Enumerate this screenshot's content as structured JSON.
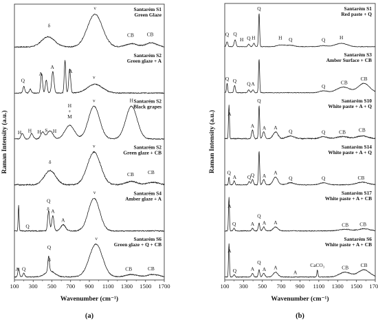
{
  "chart_data": [
    {
      "type": "line",
      "panel_label": "(a)",
      "xlabel": "Wavenumber (cm⁻¹)",
      "ylabel": "Raman Intensity (a.u.)",
      "xlim": [
        100,
        1700
      ],
      "xticks": [
        100,
        300,
        500,
        700,
        900,
        1100,
        1300,
        1500,
        1700
      ],
      "series": [
        {
          "name": "Santarém S1",
          "sub": "Green Glaze",
          "bl": 0.4,
          "sc": 1.0,
          "noise": 0.25,
          "peaks": [
            [
              460,
              70,
              2.5
            ],
            [
              960,
              80,
              8
            ],
            [
              1350,
              60,
              0.8
            ],
            [
              1560,
              60,
              1.0
            ]
          ],
          "annotations": [
            {
              "t": "δ",
              "x": 470,
              "dy": -14
            },
            {
              "t": "ν",
              "x": 960,
              "dy": -16
            },
            {
              "t": "CB",
              "x": 1340,
              "dy": -10
            },
            {
              "t": "CB",
              "x": 1550,
              "dy": -10
            }
          ]
        },
        {
          "name": "Santarém S2",
          "sub": "Green glaze + A",
          "bl": 0.6,
          "sc": 1.0,
          "noise": 0.4,
          "peaks": [
            [
              200,
              10,
              3
            ],
            [
              270,
              10,
              1.8
            ],
            [
              390,
              10,
              9
            ],
            [
              440,
              10,
              6
            ],
            [
              510,
              12,
              10
            ],
            [
              640,
              8,
              15
            ],
            [
              690,
              10,
              11
            ],
            [
              960,
              80,
              4
            ]
          ],
          "annotations": [
            {
              "t": "Q",
              "x": 190,
              "dy": -10
            },
            {
              "t": "A",
              "x": 380,
              "dy": -8
            },
            {
              "t": "A",
              "x": 505,
              "dy": -6
            },
            {
              "t": "A",
              "x": 700,
              "dy": -8
            },
            {
              "t": "ν",
              "x": 950,
              "dy": -8
            }
          ]
        },
        {
          "name": "Santarém S2",
          "sub": "Black grapes",
          "bl": 0.5,
          "sc": 1.0,
          "noise": 0.3,
          "peaks": [
            [
              185,
              15,
              2
            ],
            [
              285,
              15,
              2
            ],
            [
              400,
              20,
              2.5
            ],
            [
              480,
              30,
              3
            ],
            [
              690,
              50,
              5
            ],
            [
              950,
              60,
              12
            ],
            [
              1350,
              60,
              12
            ]
          ],
          "annotations": [
            {
              "t": "H",
              "x": 155,
              "dy": -6
            },
            {
              "t": "H",
              "x": 265,
              "dy": -6
            },
            {
              "t": "H",
              "x": 365,
              "dy": -6
            },
            {
              "t": "S",
              "x": 440,
              "dy": -4
            },
            {
              "t": "H",
              "x": 530,
              "dy": -6
            },
            {
              "t": "H",
              "x": 690,
              "dy": -26
            },
            {
              "t": "+",
              "x": 690,
              "dy": -18
            },
            {
              "t": "M",
              "x": 690,
              "dy": -10
            },
            {
              "t": "ν",
              "x": 950,
              "dy": -6
            },
            {
              "t": "H",
              "x": 1350,
              "dy": -6
            }
          ]
        },
        {
          "name": "Santarém S2",
          "sub": "Green glaze + CB",
          "bl": 0.5,
          "sc": 1.0,
          "noise": 0.3,
          "peaks": [
            [
              480,
              60,
              3.5
            ],
            [
              950,
              70,
              8
            ],
            [
              1350,
              60,
              0.8
            ],
            [
              1580,
              60,
              0.6
            ]
          ],
          "annotations": [
            {
              "t": "δ",
              "x": 480,
              "dy": -10
            },
            {
              "t": "ν",
              "x": 950,
              "dy": -10
            },
            {
              "t": "CB",
              "x": 1340,
              "dy": -8
            },
            {
              "t": "CB",
              "x": 1560,
              "dy": -12
            }
          ]
        },
        {
          "name": "Santarém S4",
          "sub": "Amber glaze + A",
          "bl": 0.5,
          "sc": 1.0,
          "noise": 0.4,
          "peaks": [
            [
              145,
              5,
              10
            ],
            [
              465,
              10,
              8
            ],
            [
              510,
              12,
              6
            ],
            [
              620,
              25,
              2.5
            ],
            [
              950,
              60,
              13
            ]
          ],
          "annotations": [
            {
              "t": "Q",
              "x": 240,
              "dy": -4
            },
            {
              "t": "Q",
              "x": 465,
              "dy": -12
            },
            {
              "t": "δ",
              "x": 460,
              "dy": -4
            },
            {
              "t": "A",
              "x": 510,
              "dy": -4
            },
            {
              "t": "A",
              "x": 620,
              "dy": -4
            },
            {
              "t": "ν",
              "x": 955,
              "dy": -6
            }
          ]
        },
        {
          "name": "Santarém S6",
          "sub": "Green glaze + Q + CB",
          "bl": 0.5,
          "sc": 1.0,
          "noise": 0.3,
          "peaks": [
            [
              145,
              8,
              3
            ],
            [
              200,
              10,
              1.2
            ],
            [
              465,
              8,
              5
            ],
            [
              480,
              50,
              2
            ],
            [
              970,
              70,
              11
            ],
            [
              1350,
              60,
              0.8
            ],
            [
              1580,
              60,
              0.8
            ]
          ],
          "annotations": [
            {
              "t": "A",
              "x": 130,
              "dy": -6
            },
            {
              "t": "Q",
              "x": 200,
              "dy": -4
            },
            {
              "t": "Q",
              "x": 470,
              "dy": -14
            },
            {
              "t": "δ",
              "x": 475,
              "dy": -4
            },
            {
              "t": "ν",
              "x": 975,
              "dy": -6
            },
            {
              "t": "CB",
              "x": 1320,
              "dy": -6
            },
            {
              "t": "CB",
              "x": 1560,
              "dy": -6
            }
          ]
        }
      ]
    },
    {
      "type": "line",
      "panel_label": "(b)",
      "xlabel": "Wavenumber (cm⁻¹)",
      "ylabel": "Raman Intensity (a.u.)",
      "xlim": [
        100,
        1700
      ],
      "xticks": [
        100,
        300,
        500,
        700,
        900,
        1100,
        1300,
        1500,
        1700
      ],
      "series": [
        {
          "name": "Santarém S1",
          "sub": "Red paste + Q",
          "bl": 0.3,
          "sc": 1.0,
          "noise": 0.3,
          "peaks": [
            [
              125,
              8,
              3
            ],
            [
              210,
              10,
              4
            ],
            [
              355,
              10,
              1.5
            ],
            [
              410,
              10,
              2
            ],
            [
              465,
              6,
              20
            ],
            [
              700,
              40,
              1
            ],
            [
              800,
              40,
              0.8
            ],
            [
              1150,
              40,
              0.6
            ],
            [
              1340,
              60,
              2
            ]
          ],
          "annotations": [
            {
              "t": "Q",
              "x": 125,
              "dy": -8
            },
            {
              "t": "Q",
              "x": 210,
              "dy": -6
            },
            {
              "t": "H",
              "x": 280,
              "dy": -8
            },
            {
              "t": "Q",
              "x": 355,
              "dy": -6
            },
            {
              "t": "H",
              "x": 405,
              "dy": -6
            },
            {
              "t": "Q",
              "x": 465,
              "dy": -4
            },
            {
              "t": "H",
              "x": 690,
              "dy": -8
            },
            {
              "t": "Q",
              "x": 800,
              "dy": -6
            },
            {
              "t": "Q",
              "x": 1150,
              "dy": -6
            },
            {
              "t": "H",
              "x": 1340,
              "dy": -6
            }
          ]
        },
        {
          "name": "Santarém S3",
          "sub": "Amber Surface + CB",
          "bl": 0.4,
          "sc": 1.0,
          "noise": 0.3,
          "peaks": [
            [
              125,
              6,
              5
            ],
            [
              205,
              8,
              4
            ],
            [
              355,
              10,
              1.5
            ],
            [
              400,
              10,
              1.5
            ],
            [
              465,
              6,
              18
            ],
            [
              1150,
              40,
              1
            ],
            [
              1360,
              70,
              3
            ],
            [
              1580,
              60,
              5
            ]
          ],
          "annotations": [
            {
              "t": "Q",
              "x": 125,
              "dy": -4
            },
            {
              "t": "Q",
              "x": 205,
              "dy": -4
            },
            {
              "t": "Q",
              "x": 355,
              "dy": -6
            },
            {
              "t": "A",
              "x": 400,
              "dy": -6
            },
            {
              "t": "Q",
              "x": 1150,
              "dy": -4
            },
            {
              "t": "CB",
              "x": 1370,
              "dy": -4
            },
            {
              "t": "CB",
              "x": 1580,
              "dy": -4
            }
          ]
        },
        {
          "name": "Santarém S10",
          "sub": "White paste + A + Q",
          "bl": 0.4,
          "sc": 1.0,
          "noise": 0.3,
          "peaks": [
            [
              145,
              5,
              10
            ],
            [
              395,
              10,
              2.5
            ],
            [
              465,
              6,
              10
            ],
            [
              515,
              12,
              2
            ],
            [
              640,
              25,
              2
            ],
            [
              800,
              40,
              0.8
            ],
            [
              1150,
              40,
              0.6
            ],
            [
              1350,
              60,
              0.6
            ],
            [
              1560,
              60,
              0.8
            ]
          ],
          "annotations": [
            {
              "t": "A",
              "x": 150,
              "dy": -4
            },
            {
              "t": "A",
              "x": 395,
              "dy": -4
            },
            {
              "t": "Q",
              "x": 465,
              "dy": -4
            },
            {
              "t": "A",
              "x": 520,
              "dy": -4
            },
            {
              "t": "A",
              "x": 640,
              "dy": -4
            },
            {
              "t": "Q",
              "x": 800,
              "dy": -4
            },
            {
              "t": "Q",
              "x": 1150,
              "dy": -4
            },
            {
              "t": "CB",
              "x": 1350,
              "dy": -4
            },
            {
              "t": "CB",
              "x": 1560,
              "dy": -6
            }
          ]
        },
        {
          "name": "Santarém S14",
          "sub": "White paste + A + Q",
          "bl": 0.4,
          "sc": 1.0,
          "noise": 0.3,
          "peaks": [
            [
              145,
              5,
              3
            ],
            [
              200,
              8,
              1.5
            ],
            [
              360,
              10,
              1.2
            ],
            [
              395,
              10,
              2
            ],
            [
              465,
              6,
              13
            ],
            [
              515,
              12,
              2
            ],
            [
              640,
              25,
              3
            ],
            [
              800,
              40,
              0.8
            ],
            [
              1150,
              40,
              0.8
            ],
            [
              1560,
              60,
              1
            ]
          ],
          "annotations": [
            {
              "t": "Q",
              "x": 145,
              "dy": -4
            },
            {
              "t": "A",
              "x": 205,
              "dy": -4
            },
            {
              "t": "Q",
              "x": 360,
              "dy": -4
            },
            {
              "t": "Q",
              "x": 395,
              "dy": -4
            },
            {
              "t": "A",
              "x": 520,
              "dy": -4
            },
            {
              "t": "A",
              "x": 640,
              "dy": -4
            },
            {
              "t": "Q",
              "x": 800,
              "dy": -4
            },
            {
              "t": "Q",
              "x": 1150,
              "dy": -4
            },
            {
              "t": "CB",
              "x": 1550,
              "dy": -4
            }
          ]
        },
        {
          "name": "Santarém S17",
          "sub": "White paste + A + CB",
          "bl": 0.4,
          "sc": 1.0,
          "noise": 0.3,
          "peaks": [
            [
              145,
              5,
              13
            ],
            [
              200,
              8,
              1
            ],
            [
              395,
              10,
              1
            ],
            [
              465,
              8,
              3
            ],
            [
              515,
              12,
              1.5
            ],
            [
              640,
              25,
              1.5
            ],
            [
              1380,
              60,
              0.6
            ],
            [
              1580,
              60,
              0.8
            ]
          ],
          "annotations": [
            {
              "t": "A",
              "x": 150,
              "dy": -4
            },
            {
              "t": "Q",
              "x": 200,
              "dy": -4
            },
            {
              "t": "A",
              "x": 395,
              "dy": -4
            },
            {
              "t": "Q",
              "x": 465,
              "dy": -8
            },
            {
              "t": "A",
              "x": 520,
              "dy": -4
            },
            {
              "t": "A",
              "x": 640,
              "dy": -4
            },
            {
              "t": "CB",
              "x": 1380,
              "dy": -4
            },
            {
              "t": "CB",
              "x": 1570,
              "dy": -4
            }
          ]
        },
        {
          "name": "Santarém S6",
          "sub": "White paste + A + CB",
          "bl": 0.4,
          "sc": 1.0,
          "noise": 0.3,
          "peaks": [
            [
              145,
              5,
              14
            ],
            [
              200,
              8,
              1
            ],
            [
              395,
              10,
              1.5
            ],
            [
              465,
              8,
              3
            ],
            [
              515,
              12,
              1.5
            ],
            [
              640,
              25,
              2
            ],
            [
              1085,
              6,
              3
            ],
            [
              1380,
              60,
              2
            ],
            [
              1580,
              60,
              3
            ]
          ],
          "annotations": [
            {
              "t": "A",
              "x": 150,
              "dy": -6
            },
            {
              "t": "Q",
              "x": 205,
              "dy": -4
            },
            {
              "t": "A",
              "x": 395,
              "dy": -4
            },
            {
              "t": "Q",
              "x": 465,
              "dy": -8
            },
            {
              "t": "A",
              "x": 520,
              "dy": -4
            },
            {
              "t": "A",
              "x": 640,
              "dy": -4
            },
            {
              "t": "A",
              "x": 850,
              "dy": -4
            },
            {
              "t": "CaCO₃",
              "x": 1085,
              "dy": -4
            },
            {
              "t": "CB",
              "x": 1380,
              "dy": -4
            },
            {
              "t": "CB",
              "x": 1580,
              "dy": -4
            }
          ]
        }
      ]
    }
  ]
}
